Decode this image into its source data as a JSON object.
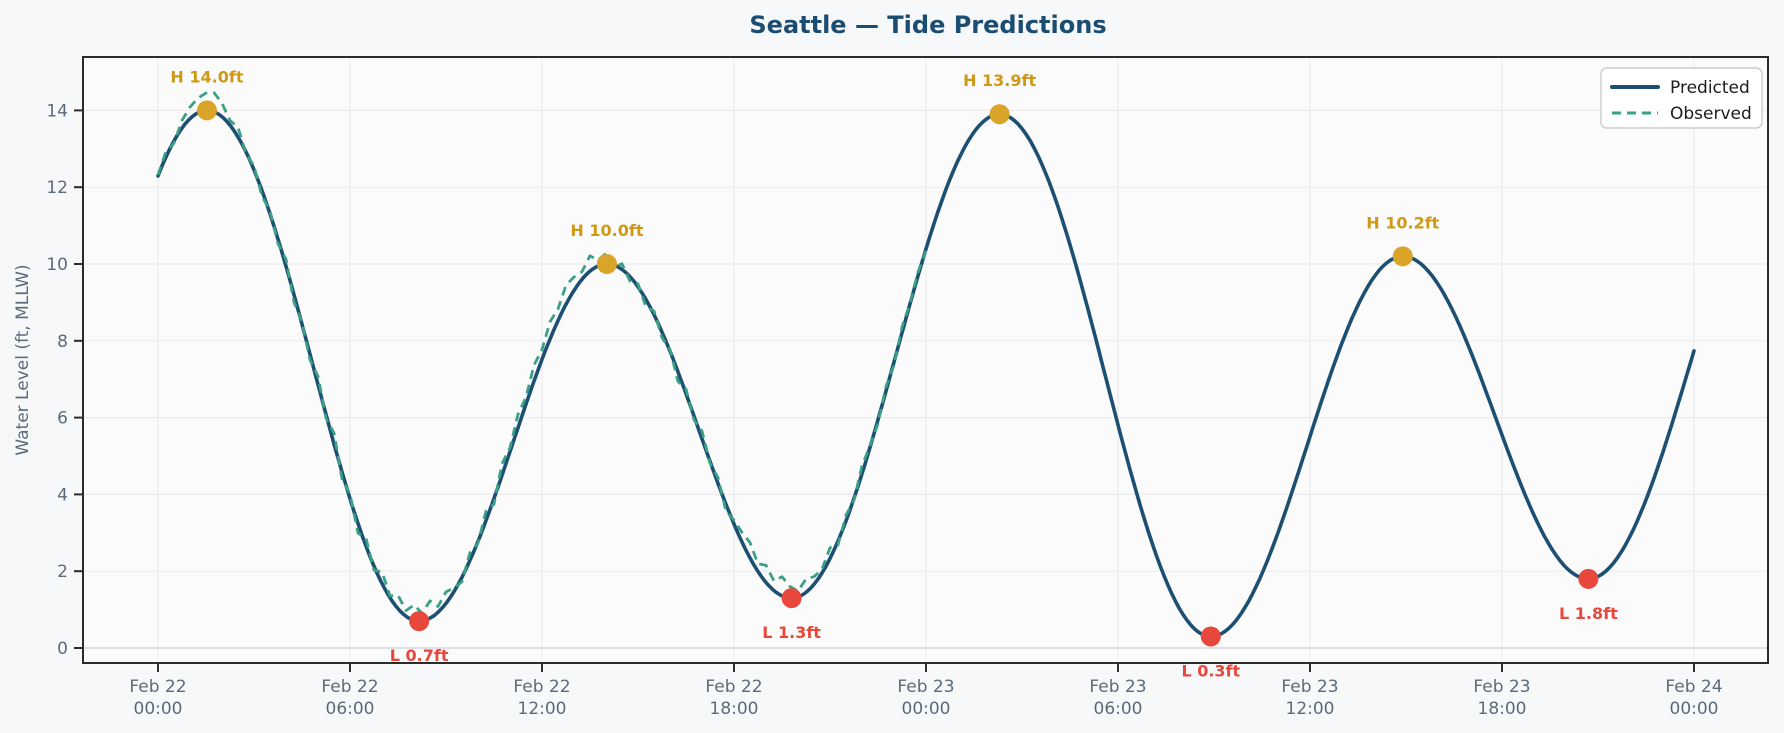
{
  "title": "Seattle — Tide Predictions",
  "chart_data": {
    "type": "line",
    "title": "Seattle — Tide Predictions",
    "xlabel": "",
    "ylabel": "Water Level (ft, MLLW)",
    "x_unit": "hours since Feb 22 00:00",
    "xlim_hours": [
      -2.34,
      50.3
    ],
    "ylim": [
      -0.39,
      15.39
    ],
    "grid": true,
    "y_ticks": [
      0,
      2,
      4,
      6,
      8,
      10,
      12,
      14
    ],
    "x_ticks": [
      {
        "hour": 0,
        "date": "Feb 22",
        "time": "00:00"
      },
      {
        "hour": 6,
        "date": "Feb 22",
        "time": "06:00"
      },
      {
        "hour": 12,
        "date": "Feb 22",
        "time": "12:00"
      },
      {
        "hour": 18,
        "date": "Feb 22",
        "time": "18:00"
      },
      {
        "hour": 24,
        "date": "Feb 23",
        "time": "00:00"
      },
      {
        "hour": 30,
        "date": "Feb 23",
        "time": "06:00"
      },
      {
        "hour": 36,
        "date": "Feb 23",
        "time": "12:00"
      },
      {
        "hour": 42,
        "date": "Feb 23",
        "time": "18:00"
      },
      {
        "hour": 48,
        "date": "Feb 24",
        "time": "00:00"
      }
    ],
    "legend": {
      "position": "upper-right",
      "entries": [
        {
          "label": "Predicted",
          "style": "solid",
          "color": "#1d4f72"
        },
        {
          "label": "Observed",
          "style": "dashed",
          "color": "#3aa086"
        }
      ]
    },
    "events": [
      {
        "type": "high",
        "label": "H 14.0ft",
        "hour": 1.53,
        "value": 14.0
      },
      {
        "type": "low",
        "label": "L 0.7ft",
        "hour": 8.16,
        "value": 0.7
      },
      {
        "type": "high",
        "label": "H 10.0ft",
        "hour": 14.03,
        "value": 10.0
      },
      {
        "type": "low",
        "label": "L 1.3ft",
        "hour": 19.8,
        "value": 1.3
      },
      {
        "type": "high",
        "label": "H 13.9ft",
        "hour": 26.3,
        "value": 13.9
      },
      {
        "type": "low",
        "label": "L 0.3ft",
        "hour": 32.9,
        "value": 0.3
      },
      {
        "type": "high",
        "label": "H 10.2ft",
        "hour": 38.9,
        "value": 10.2
      },
      {
        "type": "low",
        "label": "L 1.8ft",
        "hour": 44.7,
        "value": 1.8
      }
    ],
    "predicted": {
      "name": "Predicted",
      "start_point": {
        "hour": 0,
        "value": 12.3
      },
      "end_point": {
        "hour": 48,
        "value": 7.8
      },
      "extremes_with_virtual_endpoints": [
        [
          -4.9,
          1.2
        ],
        [
          1.53,
          14.0
        ],
        [
          8.16,
          0.7
        ],
        [
          14.03,
          10.0
        ],
        [
          19.8,
          1.3
        ],
        [
          26.3,
          13.9
        ],
        [
          32.9,
          0.3
        ],
        [
          38.9,
          10.2
        ],
        [
          44.7,
          1.8
        ],
        [
          51.2,
          13.4
        ]
      ]
    },
    "observed": {
      "name": "Observed",
      "start_hour": 0,
      "end_hour": 24,
      "step_hours": 0.25,
      "offsets_from_predicted": [
        0.02,
        0.15,
        -0.06,
        0.2,
        0.3,
        0.38,
        0.45,
        0.5,
        0.35,
        0.12,
        0.25,
        -0.05,
        0.1,
        -0.15,
        0.08,
        -0.12,
        0.18,
        -0.2,
        0.05,
        -0.15,
        0.22,
        -0.1,
        0.28,
        -0.18,
        0.12,
        -0.25,
        0.2,
        -0.1,
        0.3,
        0.05,
        0.35,
        0.15,
        0.4,
        0.2,
        0.45,
        0.15,
        0.3,
        0.1,
        -0.12,
        0.2,
        -0.05,
        0.25,
        -0.15,
        0.3,
        0.1,
        0.35,
        0.18,
        0.42,
        0.25,
        0.45,
        0.3,
        0.5,
        0.35,
        0.2,
        0.4,
        0.15,
        0.28,
        -0.05,
        0.15,
        -0.12,
        0.08,
        -0.2,
        0.1,
        -0.15,
        0.05,
        -0.25,
        0.12,
        -0.1,
        0.2,
        -0.05,
        0.15,
        -0.18,
        0.1,
        0.25,
        0.4,
        0.2,
        0.45,
        0.25,
        0.5,
        0.3,
        0.15,
        0.35,
        0.2,
        0.1,
        0.28,
        -0.1,
        0.15,
        -0.05,
        0.2,
        0.05,
        -0.1,
        0.12,
        -0.08,
        0.15,
        0.02,
        0.1,
        -0.05
      ]
    },
    "colors": {
      "figure_bg": "#f7f8f9",
      "plot_bg": "#fbfbfc",
      "grid": "#ececee",
      "zero_grid": "#d6d8dc",
      "spine": "#2b2b2b",
      "predicted": "#1d4f72",
      "observed": "#3aa086",
      "high_marker": "#d9a427",
      "high_text": "#cf9916",
      "low_marker": "#e8483b",
      "low_text": "#e8483b",
      "title_text": "#1b4d72",
      "tick_text": "#5c6b7c"
    }
  }
}
